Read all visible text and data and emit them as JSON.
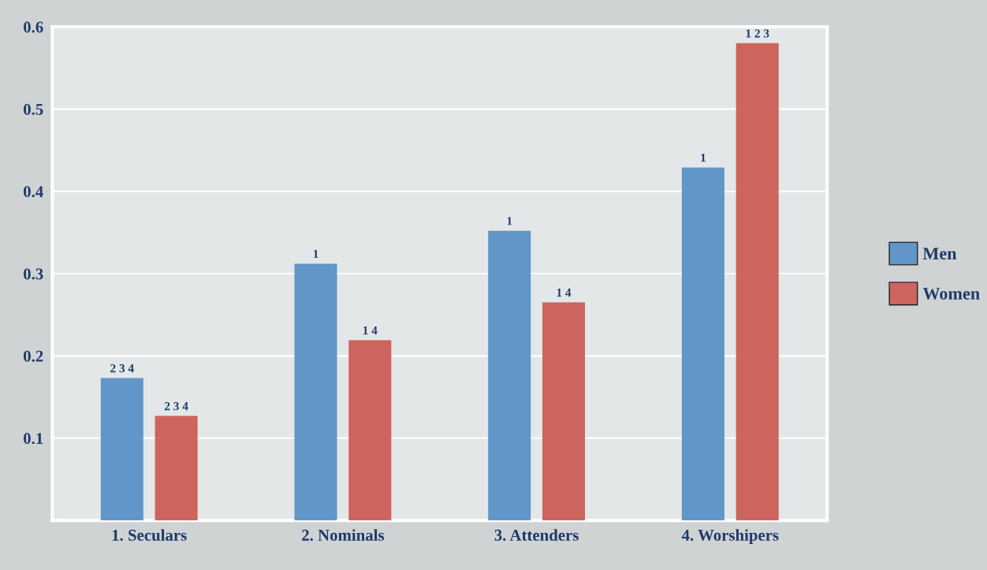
{
  "chart_data": {
    "type": "bar",
    "categories": [
      "1. Seculars",
      "2. Nominals",
      "3. Attenders",
      "4. Worshipers"
    ],
    "series": [
      {
        "name": "Men",
        "color": "#6296c8",
        "values": [
          0.173,
          0.312,
          0.352,
          0.429
        ]
      },
      {
        "name": "Women",
        "color": "#cd645d",
        "values": [
          0.127,
          0.219,
          0.265,
          0.58
        ]
      }
    ],
    "annotations": [
      "2 3 4",
      "1",
      "1",
      "1",
      "2 3 4",
      "1 4",
      "1 4",
      "1 2 3"
    ],
    "ylim": [
      0,
      0.6
    ],
    "yticks": [
      0.1,
      0.2,
      0.3,
      0.4,
      0.5,
      0.6
    ],
    "grid": "y",
    "legend": "right"
  }
}
